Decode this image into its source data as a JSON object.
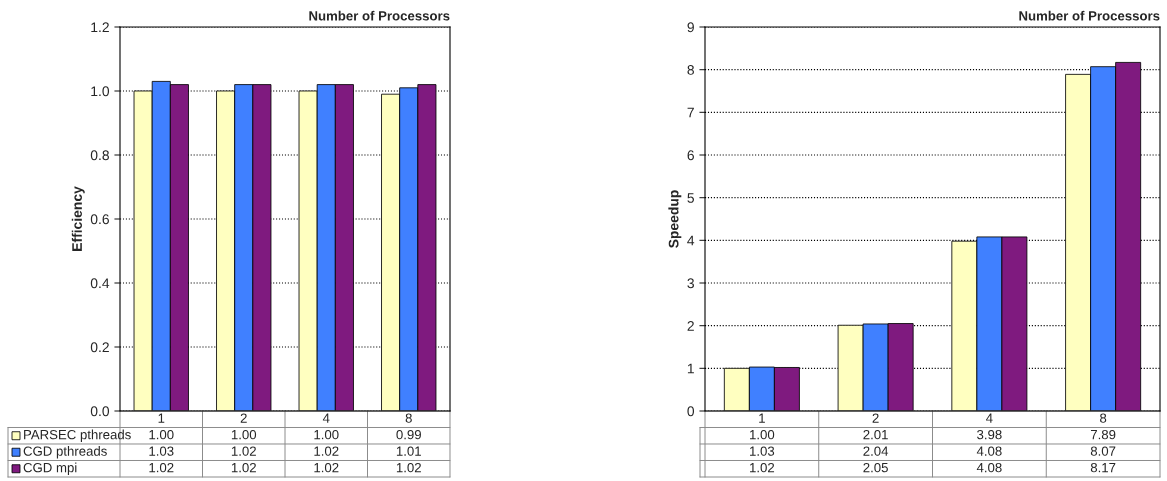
{
  "chart_data": [
    {
      "type": "bar",
      "xlabel": "Number of Processors",
      "ylabel": "Efficiency",
      "categories": [
        "1",
        "2",
        "4",
        "8"
      ],
      "series": [
        {
          "name": "PARSEC pthreads",
          "color": "#ffffc0",
          "values": [
            1.0,
            1.0,
            1.0,
            0.99
          ],
          "value_labels": [
            "1.00",
            "1.00",
            "1.00",
            "0.99"
          ]
        },
        {
          "name": "CGD pthreads",
          "color": "#4080ff",
          "values": [
            1.03,
            1.02,
            1.02,
            1.01
          ],
          "value_labels": [
            "1.03",
            "1.02",
            "1.02",
            "1.01"
          ]
        },
        {
          "name": "CGD mpi",
          "color": "#7f1a7f",
          "values": [
            1.02,
            1.02,
            1.02,
            1.02
          ],
          "value_labels": [
            "1.02",
            "1.02",
            "1.02",
            "1.02"
          ]
        }
      ],
      "ylim": [
        0,
        1.2
      ],
      "yticks": [
        {
          "value": 0,
          "label": "0.0"
        },
        {
          "value": 0.2,
          "label": "0.2"
        },
        {
          "value": 0.4,
          "label": "0.4"
        },
        {
          "value": 0.6,
          "label": "0.6"
        },
        {
          "value": 0.8,
          "label": "0.8"
        },
        {
          "value": 1.0,
          "label": "1.0"
        },
        {
          "value": 1.2,
          "label": "1.2"
        }
      ],
      "grid": "y",
      "legend": "bottom",
      "tick_labels": "y"
    },
    {
      "type": "bar",
      "xlabel": "Number of Processors",
      "ylabel": "Speedup",
      "categories": [
        "1",
        "2",
        "4",
        "8"
      ],
      "series": [
        {
          "color": "#ffffc0",
          "values": [
            1.0,
            2.01,
            3.98,
            7.89
          ],
          "value_labels": [
            "1.00",
            "2.01",
            "3.98",
            "7.89"
          ]
        },
        {
          "color": "#4080ff",
          "values": [
            1.03,
            2.04,
            4.08,
            8.07
          ],
          "value_labels": [
            "1.03",
            "2.04",
            "4.08",
            "8.07"
          ]
        },
        {
          "color": "#7f1a7f",
          "values": [
            1.02,
            2.05,
            4.08,
            8.17
          ],
          "value_labels": [
            "1.02",
            "2.05",
            "4.08",
            "8.17"
          ]
        }
      ],
      "ylim": [
        0,
        9
      ],
      "yticks": [
        0,
        1,
        2,
        3,
        4,
        5,
        6,
        7,
        8,
        9
      ],
      "grid": "y",
      "tick_labels": "y"
    }
  ]
}
